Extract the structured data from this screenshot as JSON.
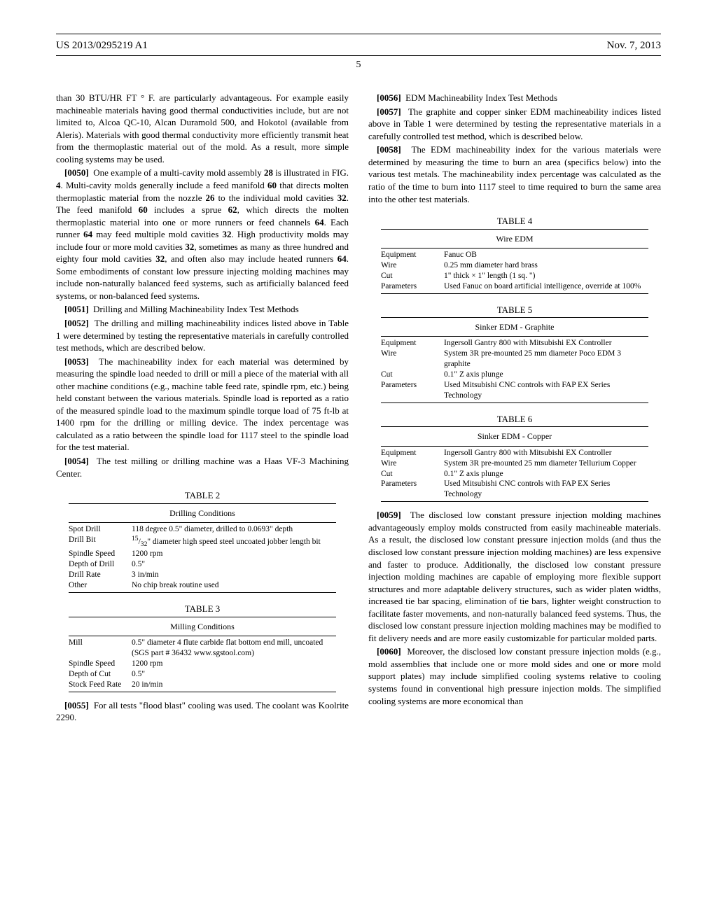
{
  "header": {
    "doc_id": "US 2013/0295219 A1",
    "date": "Nov. 7, 2013",
    "page_num": "5"
  },
  "left_col": {
    "p49_cont": "than 30 BTU/HR FT ° F. are particularly advantageous. For example easily machineable materials having good thermal conductivities include, but are not limited to, Alcoa QC-10, Alcan Duramold 500, and Hokotol (available from Aleris). Materials with good thermal conductivity more efficiently transmit heat from the thermoplastic material out of the mold. As a result, more simple cooling systems may be used.",
    "p50_num": "[0050]",
    "p50": "One example of a multi-cavity mold assembly 28 is illustrated in FIG. 4. Multi-cavity molds generally include a feed manifold 60 that directs molten thermoplastic material from the nozzle 26 to the individual mold cavities 32. The feed manifold 60 includes a sprue 62, which directs the molten thermoplastic material into one or more runners or feed channels 64. Each runner 64 may feed multiple mold cavities 32. High productivity molds may include four or more mold cavities 32, sometimes as many as three hundred and eighty four mold cavities 32, and often also may include heated runners 64. Some embodiments of constant low pressure injecting molding machines may include non-naturally balanced feed systems, such as artificially balanced feed systems, or non-balanced feed systems.",
    "p51_num": "[0051]",
    "p51": "Drilling and Milling Machineability Index Test Methods",
    "p52_num": "[0052]",
    "p52": "The drilling and milling machineability indices listed above in Table 1 were determined by testing the representative materials in carefully controlled test methods, which are described below.",
    "p53_num": "[0053]",
    "p53": "The machineability index for each material was determined by measuring the spindle load needed to drill or mill a piece of the material with all other machine conditions (e.g., machine table feed rate, spindle rpm, etc.) being held constant between the various materials. Spindle load is reported as a ratio of the measured spindle load to the maximum spindle torque load of 75 ft-lb at 1400 rpm for the drilling or milling device. The index percentage was calculated as a ratio between the spindle load for 1117 steel to the spindle load for the test material.",
    "p54_num": "[0054]",
    "p54": "The test milling or drilling machine was a Haas VF-3 Machining Center.",
    "p55_num": "[0055]",
    "p55": "For all tests \"flood blast\" cooling was used. The coolant was Koolrite 2290."
  },
  "right_col": {
    "p56_num": "[0056]",
    "p56": "EDM Machineability Index Test Methods",
    "p57_num": "[0057]",
    "p57": "The graphite and copper sinker EDM machineability indices listed above in Table 1 were determined by testing the representative materials in a carefully controlled test method, which is described below.",
    "p58_num": "[0058]",
    "p58": "The EDM machineability index for the various materials were determined by measuring the time to burn an area (specifics below) into the various test metals. The machineability index percentage was calculated as the ratio of the time to burn into 1117 steel to time required to burn the same area into the other test materials.",
    "p59_num": "[0059]",
    "p59": "The disclosed low constant pressure injection molding machines advantageously employ molds constructed from easily machineable materials. As a result, the disclosed low constant pressure injection molds (and thus the disclosed low constant pressure injection molding machines) are less expensive and faster to produce. Additionally, the disclosed low constant pressure injection molding machines are capable of employing more flexible support structures and more adaptable delivery structures, such as wider platen widths, increased tie bar spacing, elimination of tie bars, lighter weight construction to facilitate faster movements, and non-naturally balanced feed systems. Thus, the disclosed low constant pressure injection molding machines may be modified to fit delivery needs and are more easily customizable for particular molded parts.",
    "p60_num": "[0060]",
    "p60": "Moreover, the disclosed low constant pressure injection molds (e.g., mold assemblies that include one or more mold sides and one or more mold support plates) may include simplified cooling systems relative to cooling systems found in conventional high pressure injection molds. The simplified cooling systems are more economical than"
  },
  "table2": {
    "label": "TABLE 2",
    "title": "Drilling Conditions",
    "rows": [
      [
        "Spot Drill",
        "118 degree 0.5\" diameter, drilled to 0.0693\" depth"
      ],
      [
        "Drill Bit",
        "15/32\" diameter high speed steel uncoated jobber length bit"
      ],
      [
        "Spindle Speed",
        "1200 rpm"
      ],
      [
        "Depth of Drill",
        "0.5\""
      ],
      [
        "Drill Rate",
        "3 in/min"
      ],
      [
        "Other",
        "No chip break routine used"
      ]
    ]
  },
  "table3": {
    "label": "TABLE 3",
    "title": "Milling Conditions",
    "rows": [
      [
        "Mill",
        "0.5\" diameter 4 flute carbide flat bottom end mill, uncoated (SGS part # 36432 www.sgstool.com)"
      ],
      [
        "Spindle Speed",
        "1200 rpm"
      ],
      [
        "Depth of Cut",
        "0.5\""
      ],
      [
        "Stock Feed Rate",
        "20 in/min"
      ]
    ]
  },
  "table4": {
    "label": "TABLE 4",
    "title": "Wire EDM",
    "rows": [
      [
        "Equipment",
        "Fanuc OB"
      ],
      [
        "Wire",
        "0.25 mm diameter hard brass"
      ],
      [
        "Cut",
        "1\" thick × 1\" length (1 sq. \")"
      ],
      [
        "Parameters",
        "Used Fanuc on board artificial intelligence, override at 100%"
      ]
    ]
  },
  "table5": {
    "label": "TABLE 5",
    "title": "Sinker EDM - Graphite",
    "rows": [
      [
        "Equipment",
        "Ingersoll Gantry 800 with Mitsubishi EX Controller"
      ],
      [
        "Wire",
        "System 3R pre-mounted 25 mm diameter Poco EDM 3 graphite"
      ],
      [
        "Cut",
        "0.1\" Z axis plunge"
      ],
      [
        "Parameters",
        "Used Mitsubishi CNC controls with FAP EX Series Technology"
      ]
    ]
  },
  "table6": {
    "label": "TABLE 6",
    "title": "Sinker EDM - Copper",
    "rows": [
      [
        "Equipment",
        "Ingersoll Gantry 800 with Mitsubishi EX Controller"
      ],
      [
        "Wire",
        "System 3R pre-mounted 25 mm diameter Tellurium Copper"
      ],
      [
        "Cut",
        "0.1\" Z axis plunge"
      ],
      [
        "Parameters",
        "Used Mitsubishi CNC controls with FAP EX Series Technology"
      ]
    ]
  }
}
